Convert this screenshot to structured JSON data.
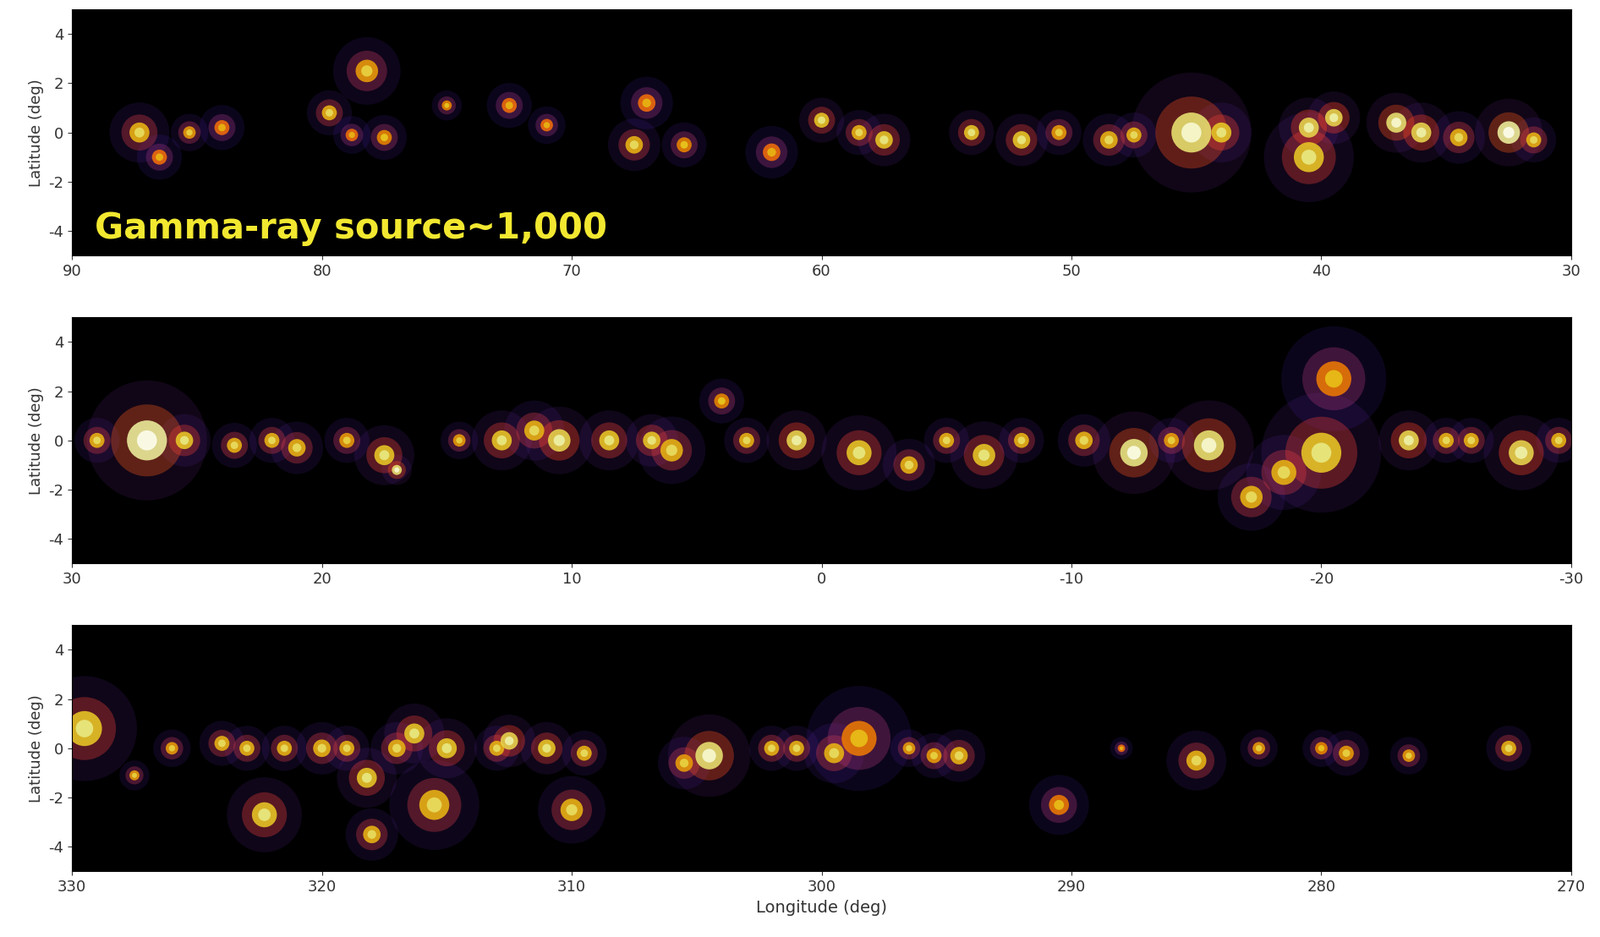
{
  "chart_data": [
    {
      "type": "scatter",
      "ylabel": "Latitude (deg)",
      "annotation": "Gamma-ray source~1,000",
      "xlim": [
        90,
        30
      ],
      "ylim": [
        -5,
        5
      ],
      "xticks": [
        90,
        80,
        70,
        60,
        50,
        40,
        30
      ],
      "yticks": [
        -4,
        -2,
        0,
        2,
        4
      ],
      "x": [
        87.3,
        86.5,
        85.3,
        84,
        79.7,
        78.2,
        78.8,
        77.5,
        75,
        72.5,
        71,
        67,
        67.5,
        65.5,
        62,
        60,
        58.5,
        57.5,
        54,
        52,
        50.5,
        48.5,
        47.5,
        45.2,
        44,
        40.5,
        40.5,
        39.5,
        37,
        36,
        34.5,
        32.5,
        31.5
      ],
      "values": [
        0,
        -1,
        0,
        0.2,
        0.8,
        2.5,
        -0.1,
        -0.2,
        1.1,
        1.1,
        0.3,
        1.2,
        -0.5,
        -0.5,
        -0.8,
        0.5,
        0,
        -0.3,
        0,
        -0.3,
        0,
        -0.3,
        -0.1,
        0,
        0,
        0.2,
        -1,
        0.6,
        0.4,
        0,
        -0.2,
        0,
        -0.3
      ],
      "sizes": [
        0.4,
        0.3,
        0.25,
        0.3,
        0.3,
        0.45,
        0.25,
        0.3,
        0.2,
        0.3,
        0.25,
        0.35,
        0.35,
        0.3,
        0.35,
        0.3,
        0.3,
        0.35,
        0.3,
        0.35,
        0.3,
        0.35,
        0.3,
        0.8,
        0.4,
        0.4,
        0.6,
        0.35,
        0.4,
        0.4,
        0.35,
        0.45,
        0.3
      ],
      "intensity": [
        0.6,
        0.3,
        0.5,
        0.3,
        0.6,
        0.5,
        0.3,
        0.4,
        0.4,
        0.3,
        0.3,
        0.3,
        0.6,
        0.4,
        0.3,
        0.7,
        0.6,
        0.7,
        0.7,
        0.7,
        0.5,
        0.6,
        0.6,
        0.9,
        0.7,
        0.8,
        0.7,
        0.8,
        0.9,
        0.8,
        0.6,
        1.0,
        0.6
      ]
    },
    {
      "type": "scatter",
      "ylabel": "Latitude (deg)",
      "xlim": [
        30,
        -30
      ],
      "ylim": [
        -5,
        5
      ],
      "xticks": [
        30,
        20,
        10,
        0,
        -10,
        -20,
        -30
      ],
      "yticks": [
        -4,
        -2,
        0,
        2,
        4
      ],
      "x": [
        27,
        29,
        25.5,
        23.5,
        22,
        21,
        19,
        17.5,
        17,
        14.5,
        12.8,
        11.5,
        10.5,
        8.5,
        6.8,
        6,
        4,
        3,
        1,
        -1.5,
        -3.5,
        -5,
        -6.5,
        -8,
        -10.5,
        -12.5,
        -14,
        -15.5,
        -17.2,
        -18.5,
        -20,
        -20.5,
        -23.5,
        -25,
        -26,
        -28,
        -29.5
      ],
      "values": [
        0,
        0,
        0,
        -0.2,
        0,
        -0.3,
        0,
        -0.6,
        -1.2,
        0,
        0,
        0.4,
        0,
        0,
        0,
        -0.4,
        1.6,
        0,
        0,
        -0.5,
        -1,
        0,
        -0.6,
        0,
        0,
        -0.5,
        0,
        -0.2,
        -2.3,
        -1.3,
        -0.5,
        2.5,
        0,
        0,
        0,
        -0.5,
        0
      ],
      "sizes": [
        0.8,
        0.3,
        0.35,
        0.3,
        0.3,
        0.35,
        0.3,
        0.4,
        0.2,
        0.25,
        0.4,
        0.4,
        0.45,
        0.4,
        0.35,
        0.45,
        0.3,
        0.3,
        0.4,
        0.5,
        0.35,
        0.3,
        0.45,
        0.3,
        0.35,
        0.55,
        0.3,
        0.6,
        0.45,
        0.5,
        0.8,
        0.7,
        0.4,
        0.3,
        0.3,
        0.5,
        0.3
      ],
      "intensity": [
        1.0,
        0.6,
        0.7,
        0.6,
        0.6,
        0.6,
        0.5,
        0.7,
        0.9,
        0.5,
        0.7,
        0.6,
        0.8,
        0.7,
        0.7,
        0.6,
        0.4,
        0.6,
        0.8,
        0.7,
        0.6,
        0.6,
        0.7,
        0.6,
        0.6,
        0.95,
        0.5,
        0.9,
        0.6,
        0.6,
        0.7,
        0.35,
        0.8,
        0.6,
        0.6,
        0.8,
        0.6
      ]
    },
    {
      "type": "scatter",
      "ylabel": "Latitude (deg)",
      "xlabel": "Longitude (deg)",
      "xlim": [
        330,
        270
      ],
      "ylim": [
        -5,
        5
      ],
      "xticks": [
        330,
        320,
        310,
        300,
        290,
        280,
        270
      ],
      "yticks": [
        -4,
        -2,
        0,
        2,
        4
      ],
      "x": [
        329.5,
        327.5,
        326,
        324,
        323,
        322.3,
        321.5,
        320,
        319,
        318.2,
        318,
        317,
        316.3,
        315.5,
        315,
        313,
        312.5,
        311,
        310,
        309.5,
        305.5,
        304.5,
        302,
        301,
        299.5,
        298.5,
        296.5,
        295.5,
        294.5,
        290.5,
        288,
        285,
        282.5,
        280,
        279,
        276.5,
        272.5
      ],
      "values": [
        0.8,
        -1.1,
        0,
        0.2,
        0,
        -2.7,
        0,
        0,
        0,
        -1.2,
        -3.5,
        0,
        0.6,
        -2.3,
        0,
        0,
        0.3,
        0,
        -2.5,
        -0.2,
        -0.6,
        -0.3,
        0,
        0,
        -0.2,
        0.4,
        0,
        -0.3,
        -0.3,
        -2.3,
        0,
        -0.5,
        0,
        0,
        -0.2,
        -0.3,
        0
      ],
      "sizes": [
        0.7,
        0.2,
        0.25,
        0.3,
        0.3,
        0.5,
        0.3,
        0.35,
        0.3,
        0.4,
        0.35,
        0.35,
        0.4,
        0.6,
        0.4,
        0.3,
        0.35,
        0.35,
        0.45,
        0.3,
        0.35,
        0.55,
        0.3,
        0.3,
        0.4,
        0.7,
        0.25,
        0.3,
        0.35,
        0.4,
        0.15,
        0.4,
        0.25,
        0.25,
        0.3,
        0.25,
        0.3
      ],
      "intensity": [
        0.7,
        0.5,
        0.5,
        0.6,
        0.6,
        0.7,
        0.6,
        0.6,
        0.6,
        0.7,
        0.6,
        0.6,
        0.7,
        0.6,
        0.7,
        0.6,
        0.8,
        0.7,
        0.6,
        0.6,
        0.5,
        0.9,
        0.6,
        0.6,
        0.6,
        0.35,
        0.5,
        0.5,
        0.6,
        0.35,
        0.3,
        0.6,
        0.5,
        0.4,
        0.5,
        0.5,
        0.6
      ]
    }
  ]
}
